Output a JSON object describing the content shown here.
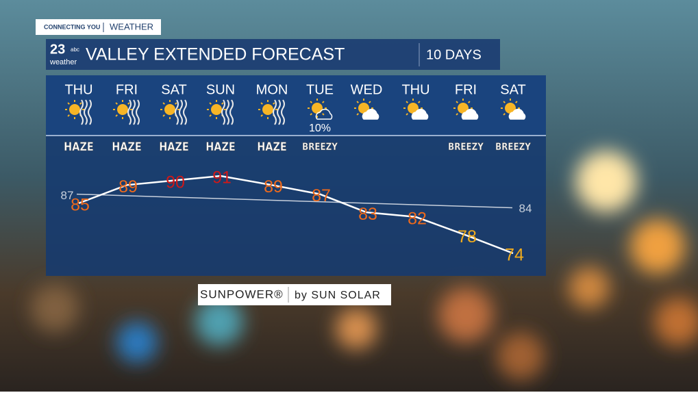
{
  "header": {
    "tag_left": "CONNECTING YOU",
    "tag_right": "WEATHER",
    "logo_number": "23",
    "logo_network": "abc",
    "logo_word": "weather",
    "title": "VALLEY EXTENDED FORECAST",
    "period": "10 DAYS"
  },
  "chart_data": {
    "type": "line",
    "categories": [
      "THU",
      "FRI",
      "SAT",
      "SUN",
      "MON",
      "TUE",
      "WED",
      "THU",
      "FRI",
      "SAT"
    ],
    "conditions": [
      "HAZE",
      "HAZE",
      "HAZE",
      "HAZE",
      "HAZE",
      "BREEZY",
      null,
      null,
      "BREEZY",
      "BREEZY"
    ],
    "precip": [
      null,
      null,
      null,
      null,
      null,
      "10%",
      null,
      null,
      null,
      null
    ],
    "series": [
      {
        "name": "High",
        "color": "#ffffff",
        "values": [
          85,
          89,
          90,
          91,
          89,
          87,
          83,
          82,
          78,
          74
        ],
        "label_colors": [
          "#ee6a1c",
          "#ee6a1c",
          "#d01818",
          "#d01818",
          "#ee6a1c",
          "#ee6a1c",
          "#ee6a1c",
          "#ee6a1c",
          "#f2ac1c",
          "#f2ac1c"
        ]
      }
    ],
    "normal": {
      "color": "#c8d0dc",
      "start": 87,
      "end": 84
    }
  },
  "sponsor": {
    "brand": "SUNPOWER®",
    "by": "by SUN SOLAR"
  }
}
